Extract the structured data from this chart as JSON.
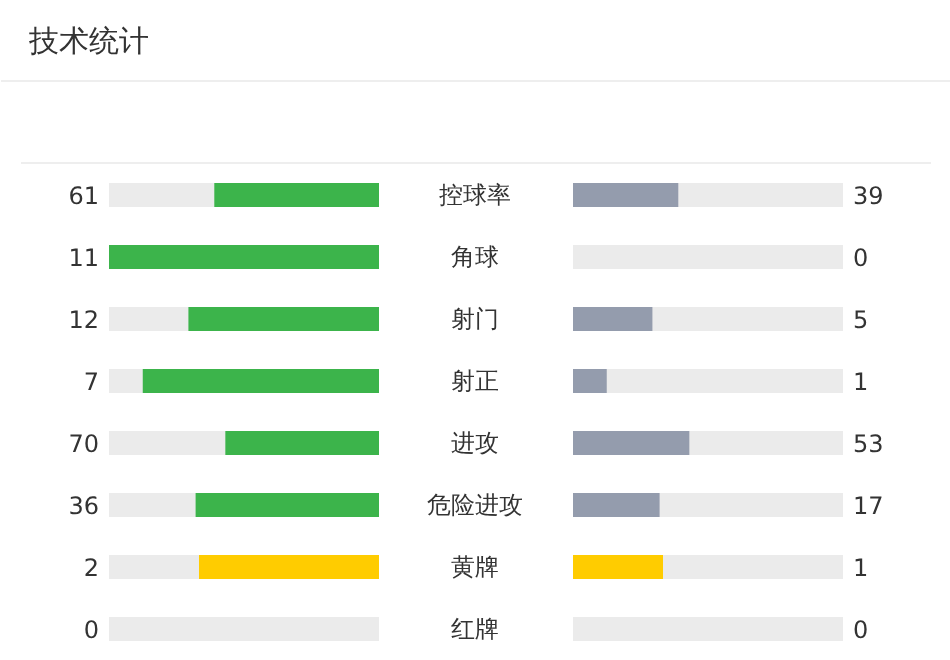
{
  "chart_data": {
    "type": "other",
    "title": "技术统计",
    "categories": [
      "控球率",
      "角球",
      "射门",
      "射正",
      "进攻",
      "危险进攻",
      "黄牌",
      "红牌"
    ],
    "data_labels": true,
    "series": [
      {
        "colors": [
          "#3cb44b",
          "#3cb44b",
          "#3cb44b",
          "#3cb44b",
          "#3cb44b",
          "#3cb44b",
          "#ffcc00",
          "#3cb44b"
        ],
        "values": [
          61,
          11,
          12,
          7,
          70,
          36,
          2,
          0
        ]
      },
      {
        "colors": [
          "#949cad",
          "#949cad",
          "#949cad",
          "#949cad",
          "#949cad",
          "#949cad",
          "#ffcc00",
          "#949cad"
        ],
        "values": [
          39,
          0,
          5,
          1,
          53,
          17,
          1,
          0
        ]
      }
    ]
  }
}
